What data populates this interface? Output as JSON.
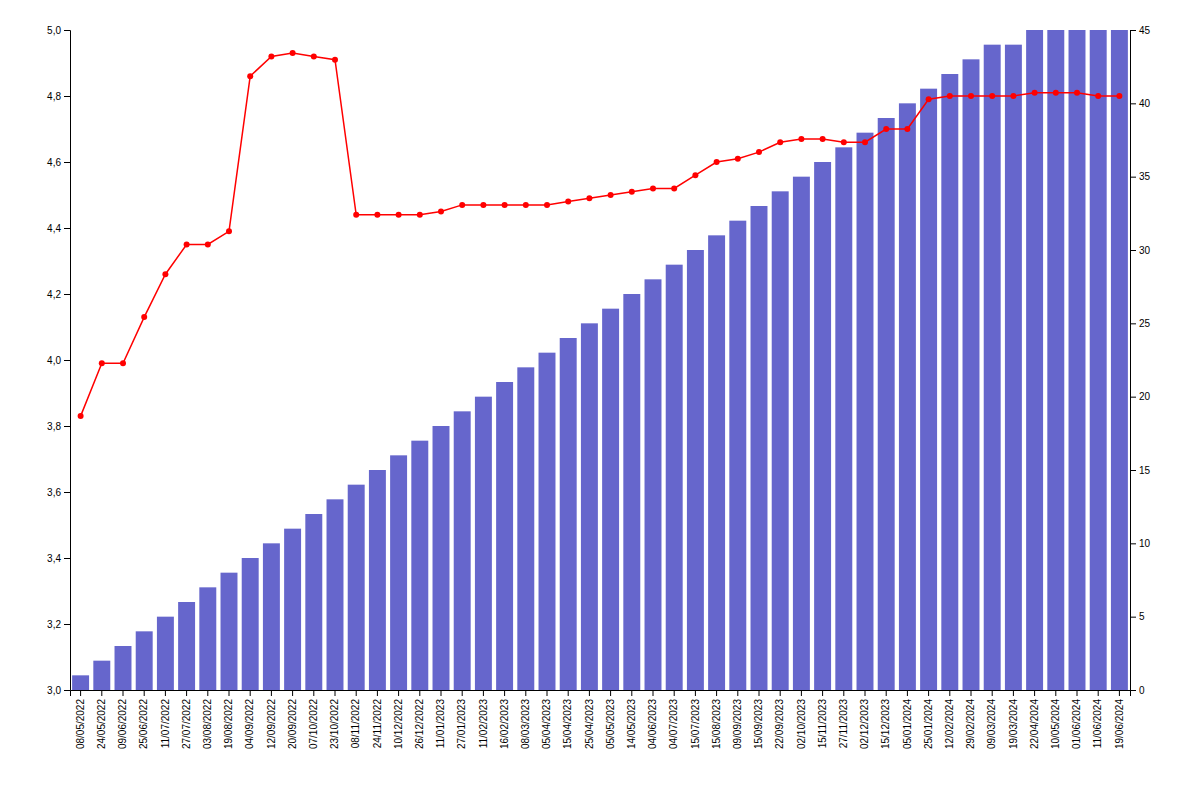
{
  "chart_data": {
    "type": "bar",
    "categories": [
      "08/05/2022",
      "24/05/2022",
      "09/06/2022",
      "25/06/2022",
      "11/07/2022",
      "27/07/2022",
      "03/08/2022",
      "19/08/2022",
      "04/09/2022",
      "12/09/2022",
      "20/09/2022",
      "07/10/2022",
      "23/10/2022",
      "08/11/2022",
      "24/11/2022",
      "10/12/2022",
      "26/12/2022",
      "11/01/2023",
      "27/01/2023",
      "11/02/2023",
      "16/02/2023",
      "08/03/2023",
      "05/04/2023",
      "15/04/2023",
      "25/04/2023",
      "05/05/2023",
      "14/05/2023",
      "04/06/2023",
      "04/07/2023",
      "15/07/2023",
      "15/08/2023",
      "09/09/2023",
      "15/09/2023",
      "22/09/2023",
      "02/10/2023",
      "15/11/2023",
      "27/11/2023",
      "02/12/2023",
      "15/12/2023",
      "05/01/2024",
      "25/01/2024",
      "12/02/2024",
      "29/02/2024",
      "09/03/2024",
      "19/03/2024",
      "22/04/2024",
      "10/05/2024",
      "01/06/2024",
      "11/06/2024",
      "19/06/2024"
    ],
    "series": [
      {
        "type": "bar",
        "axis": "y2",
        "color": "#6666cc",
        "values": [
          1,
          2,
          3,
          4,
          5,
          6,
          7,
          8,
          9,
          10,
          11,
          12,
          13,
          14,
          15,
          16,
          17,
          18,
          19,
          20,
          21,
          22,
          23,
          24,
          25,
          26,
          27,
          28,
          29,
          30,
          31,
          32,
          33,
          34,
          35,
          36,
          37,
          38,
          39,
          40,
          41,
          42,
          43,
          44,
          44,
          45,
          45,
          45,
          45,
          45
        ]
      },
      {
        "type": "line",
        "color": "#ff0000",
        "marker": "circle",
        "values": [
          3.83,
          3.99,
          3.99,
          4.13,
          4.26,
          4.35,
          4.35,
          4.39,
          4.86,
          4.92,
          4.93,
          4.92,
          4.91,
          4.44,
          4.44,
          4.44,
          4.44,
          4.45,
          4.47,
          4.47,
          4.47,
          4.47,
          4.47,
          4.48,
          4.49,
          4.5,
          4.51,
          4.52,
          4.52,
          4.56,
          4.6,
          4.61,
          4.63,
          4.66,
          4.67,
          4.67,
          4.66,
          4.66,
          4.7,
          4.7,
          4.79,
          4.8,
          4.8,
          4.8,
          4.8,
          4.81,
          4.81,
          4.81,
          4.8,
          4.8
        ]
      }
    ],
    "ylim": [
      3.0,
      5.0
    ],
    "yticks": [
      {
        "value": 3.0,
        "label": "3,0"
      },
      {
        "value": 3.2,
        "label": "3,2"
      },
      {
        "value": 3.4,
        "label": "3,4"
      },
      {
        "value": 3.6,
        "label": "3,6"
      },
      {
        "value": 3.8,
        "label": "3,8"
      },
      {
        "value": 4.0,
        "label": "4,0"
      },
      {
        "value": 4.2,
        "label": "4,2"
      },
      {
        "value": 4.4,
        "label": "4,4"
      },
      {
        "value": 4.6,
        "label": "4,6"
      },
      {
        "value": 4.8,
        "label": "4,8"
      },
      {
        "value": 5.0,
        "label": "5,0"
      }
    ],
    "y2lim": [
      0,
      45
    ],
    "y2ticks": [
      0,
      5,
      10,
      15,
      20,
      25,
      30,
      35,
      40,
      45
    ]
  }
}
